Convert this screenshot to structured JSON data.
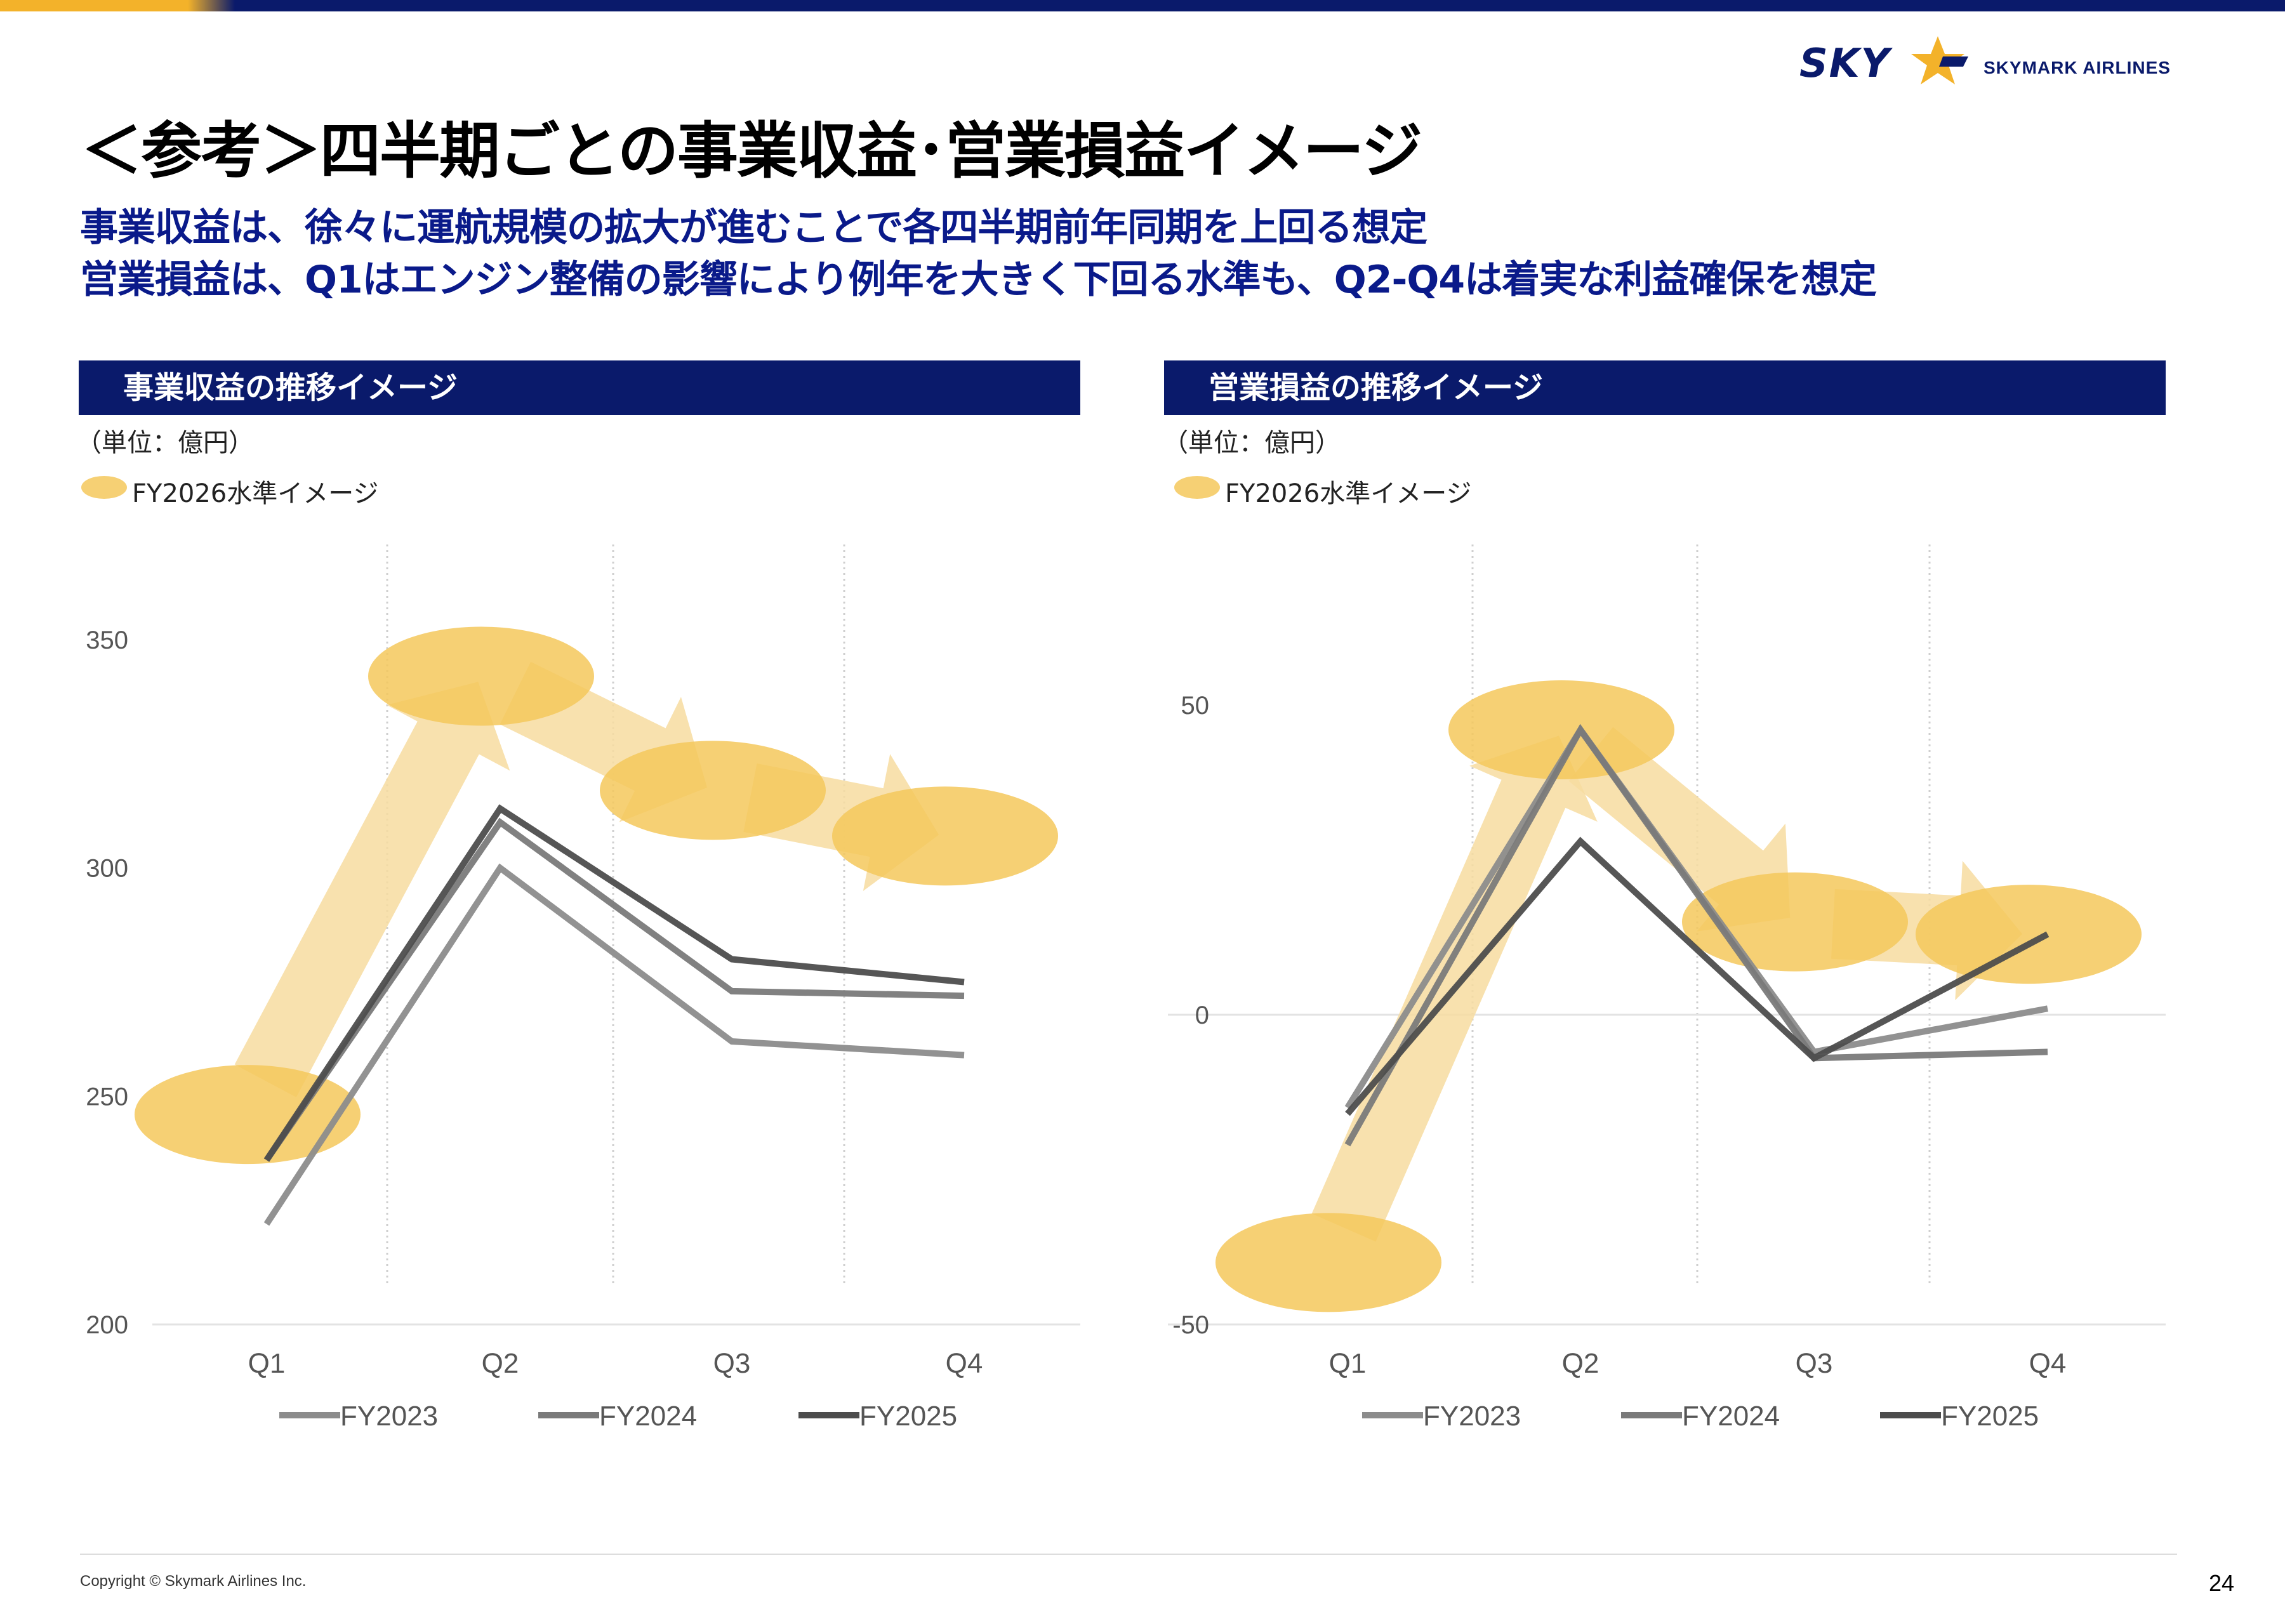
{
  "slide": {
    "title": "＜参考＞四半期ごとの事業収益･営業損益イメージ",
    "subtitle_line1": "事業収益は、徐々に運航規模の拡大が進むことで各四半期前年同期を上回る想定",
    "subtitle_line2": "営業損益は、Q1はエンジン整備の影響により例年を大きく下回る水準も、Q2-Q4は着実な利益確保を想定",
    "logo_sky": "SKY",
    "logo_text": "SKYMARK AIRLINES",
    "copyright": "Copyright © Skymark Airlines Inc.",
    "page_number": "24"
  },
  "colors": {
    "navy": "#0a1a6b",
    "subtitle_blue": "#0a1a8a",
    "accent_gold": "#f3b22a",
    "ellipse": "#f5c85c",
    "arrow": "#f7dca0",
    "fy2023": "#8c8c8c",
    "fy2024": "#7a7a7a",
    "fy2025": "#4d4d4d"
  },
  "panels": [
    {
      "header": "事業収益の推移イメージ",
      "unit": "（単位：億円）",
      "ellipse_legend": "FY2026水準イメージ"
    },
    {
      "header": "営業損益の推移イメージ",
      "unit": "（単位：億円）",
      "ellipse_legend": "FY2026水準イメージ"
    }
  ],
  "chart_data": [
    {
      "type": "line",
      "categories": [
        "Q1",
        "Q2",
        "Q3",
        "Q4"
      ],
      "ylim": [
        200,
        350
      ],
      "yticks": [
        200,
        250,
        300,
        350
      ],
      "series": [
        {
          "name": "FY2023",
          "values": [
            222,
            300,
            262,
            259
          ]
        },
        {
          "name": "FY2024",
          "values": [
            236,
            310,
            273,
            272
          ]
        },
        {
          "name": "FY2025",
          "values": [
            236,
            313,
            280,
            275
          ]
        }
      ],
      "fy2026_image": [
        246,
        342,
        317,
        307
      ],
      "legend_placement": "bottom",
      "grid": "vertical dotted between quarters"
    },
    {
      "type": "line",
      "categories": [
        "Q1",
        "Q2",
        "Q3",
        "Q4"
      ],
      "ylim": [
        -50,
        50
      ],
      "yticks": [
        -50,
        0,
        50
      ],
      "series": [
        {
          "name": "FY2023",
          "values": [
            -15,
            46,
            -6,
            1
          ]
        },
        {
          "name": "FY2024",
          "values": [
            -21,
            46,
            -7,
            -6
          ]
        },
        {
          "name": "FY2025",
          "values": [
            -16,
            28,
            -7,
            13
          ]
        }
      ],
      "fy2026_image": [
        -40,
        46,
        15,
        13
      ],
      "legend_placement": "bottom",
      "grid": "vertical dotted between quarters"
    }
  ]
}
